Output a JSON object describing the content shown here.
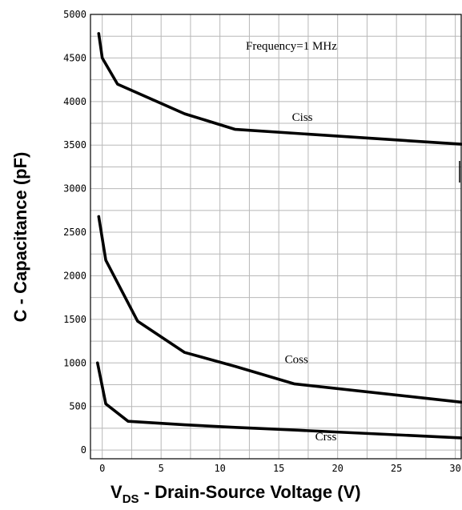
{
  "chart_data": {
    "type": "line",
    "xlabel_main": "V",
    "xlabel_sub": "DS",
    "xlabel_rest": " - Drain-Source Voltage (V)",
    "ylabel": "C - Capacitance (pF)",
    "annotation": "Frequency=1 MHz",
    "xlim": [
      -1,
      30.5
    ],
    "ylim": [
      -100,
      5000
    ],
    "x_ticks": [
      0,
      5,
      10,
      15,
      20,
      25,
      30
    ],
    "y_ticks": [
      0,
      500,
      1000,
      1500,
      2000,
      2500,
      3000,
      3500,
      4000,
      4500,
      5000
    ],
    "grid": true,
    "series": [
      {
        "name": "Ciss",
        "x": [
          -0.3,
          0,
          1.3,
          7,
          11.3,
          30.5
        ],
        "y": [
          4780,
          4500,
          4200,
          3860,
          3680,
          3510
        ]
      },
      {
        "name": "Coss",
        "x": [
          -0.3,
          0.3,
          3,
          7,
          11.3,
          16.3,
          30.5
        ],
        "y": [
          2680,
          2180,
          1480,
          1120,
          960,
          760,
          550
        ]
      },
      {
        "name": "Crss",
        "x": [
          -0.4,
          0.3,
          2.2,
          7,
          11.3,
          16.3,
          30.5
        ],
        "y": [
          1000,
          530,
          330,
          290,
          260,
          230,
          140
        ]
      }
    ]
  }
}
